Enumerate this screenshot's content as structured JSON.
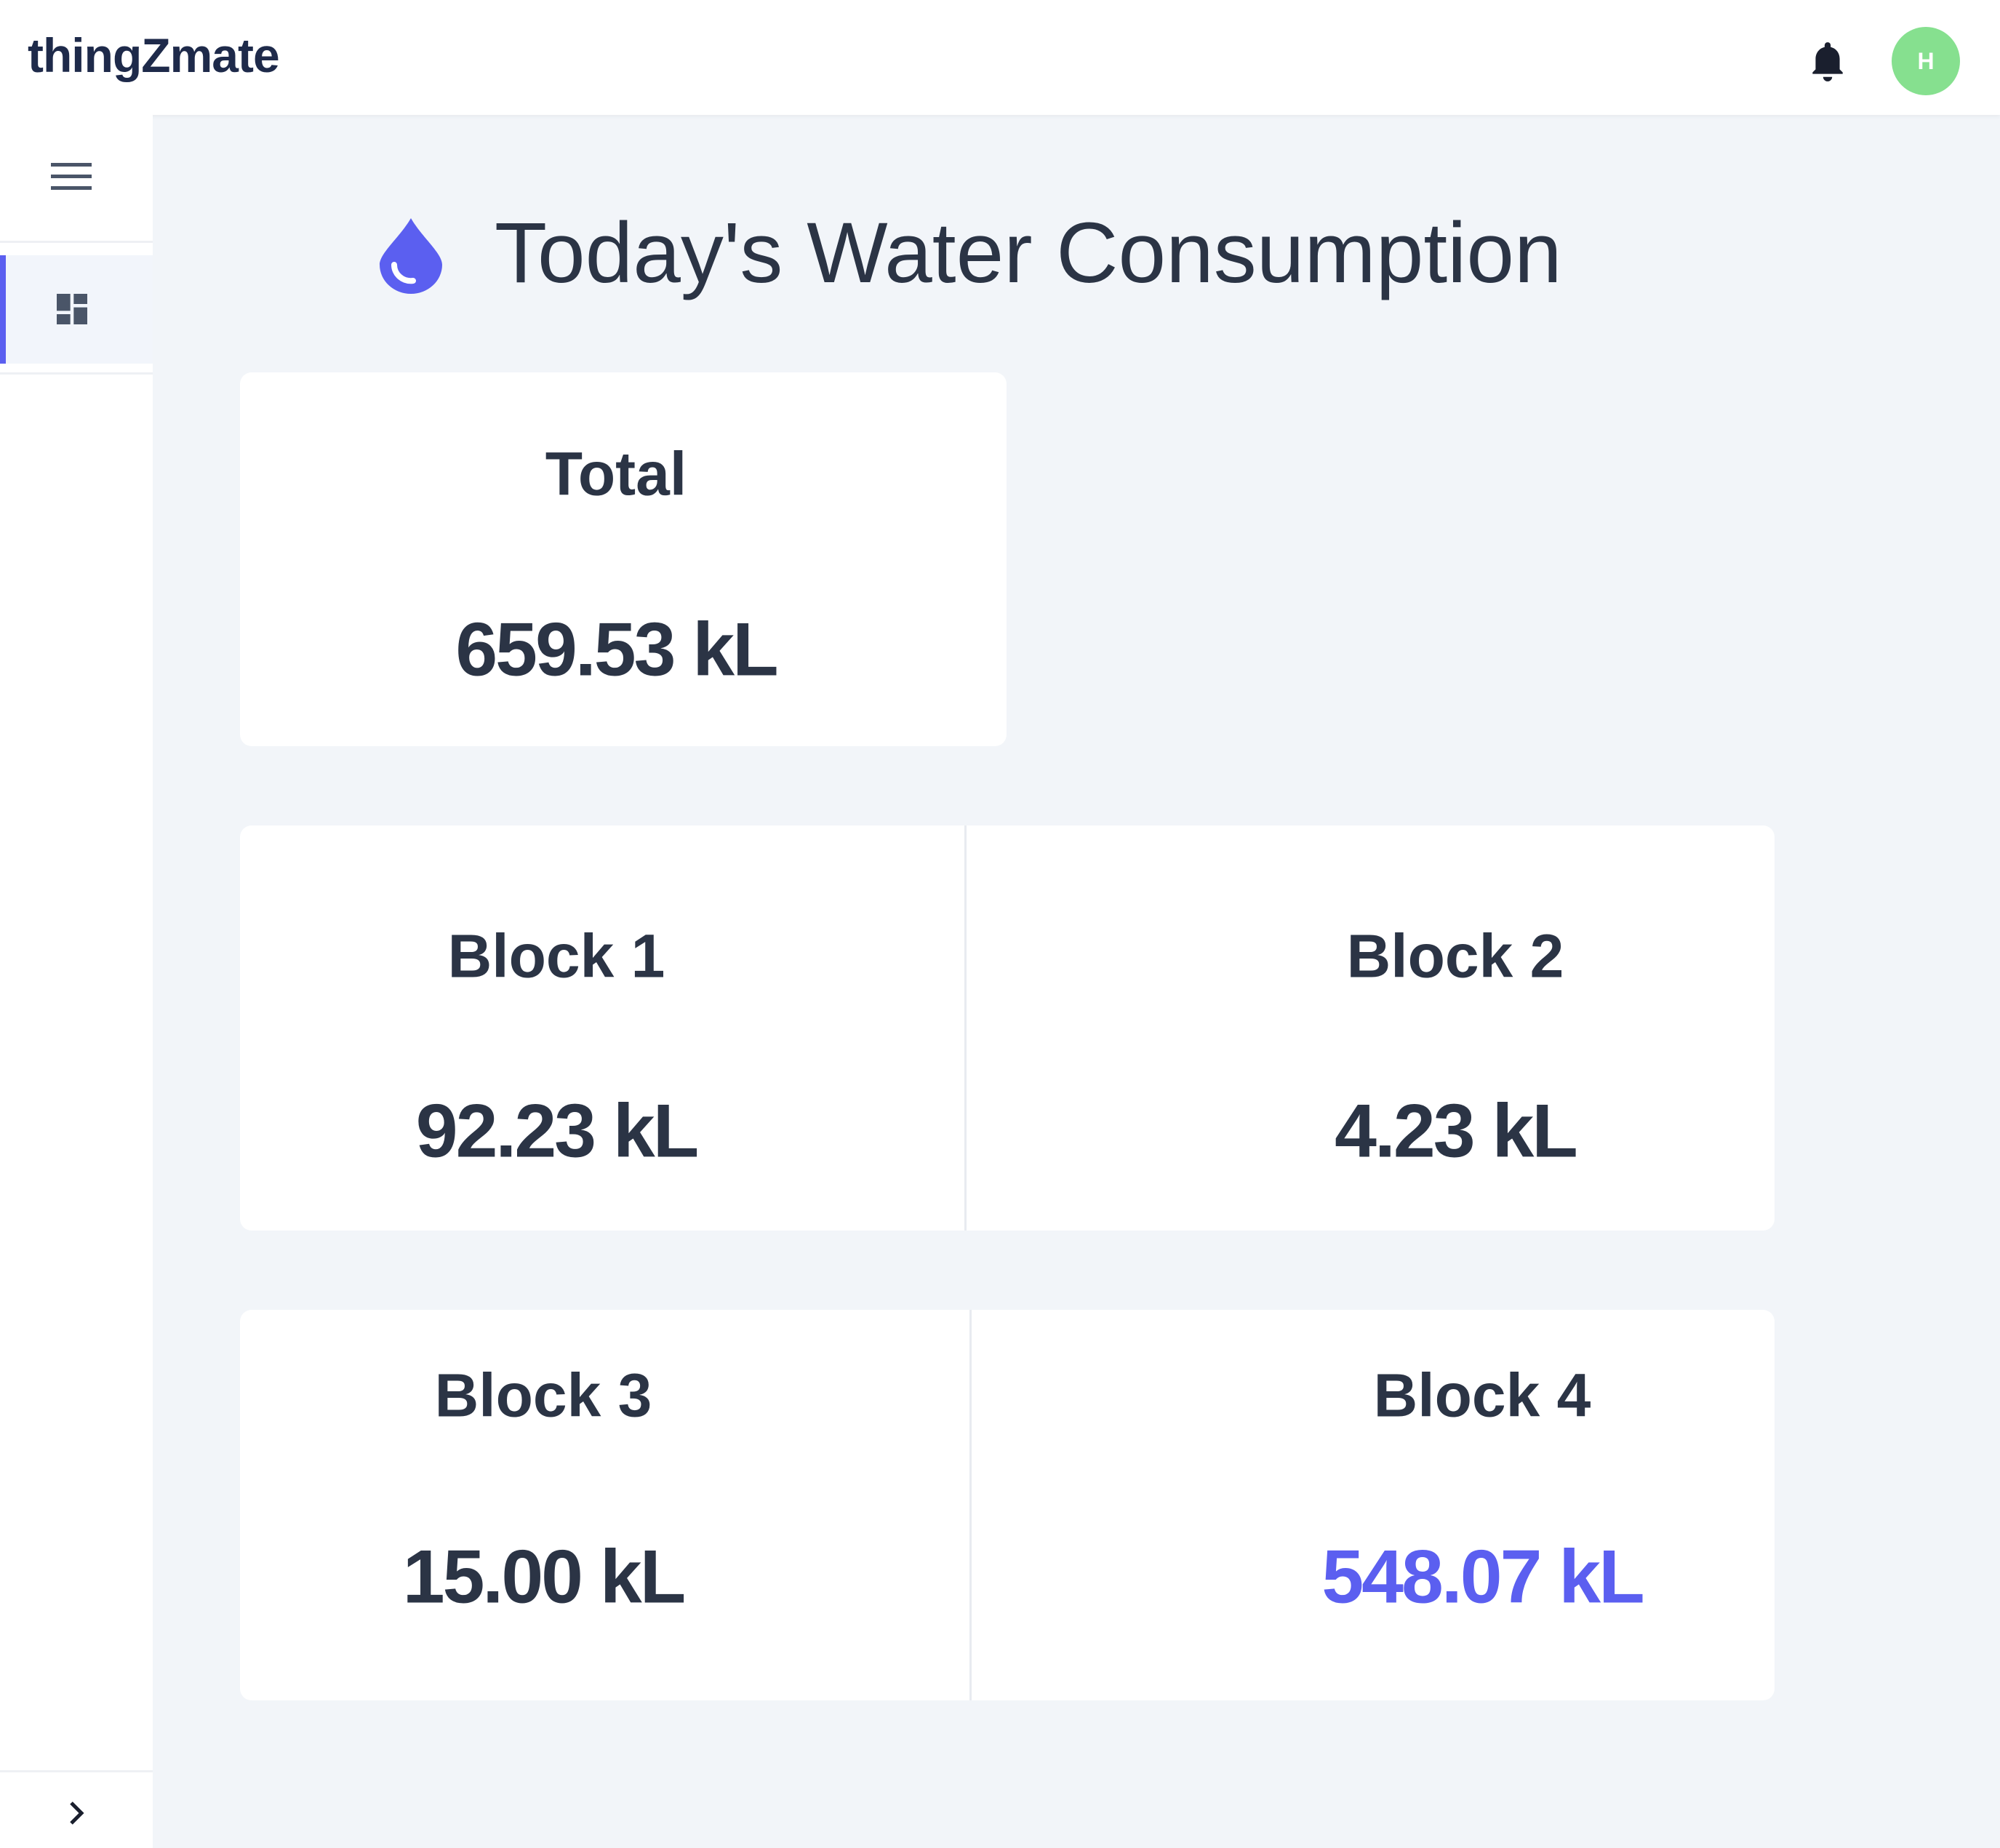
{
  "header": {
    "logo": "thingZmate",
    "avatar": "H"
  },
  "title": "Today's Water Consumption",
  "total": {
    "label": "Total",
    "value": "659.53 kL"
  },
  "blocks": [
    {
      "label": "Block 1",
      "value": "92.23 kL"
    },
    {
      "label": "Block 2",
      "value": "4.23 kL"
    },
    {
      "label": "Block 3",
      "value": "15.00 kL"
    },
    {
      "label": "Block 4",
      "value": "548.07 kL"
    }
  ]
}
